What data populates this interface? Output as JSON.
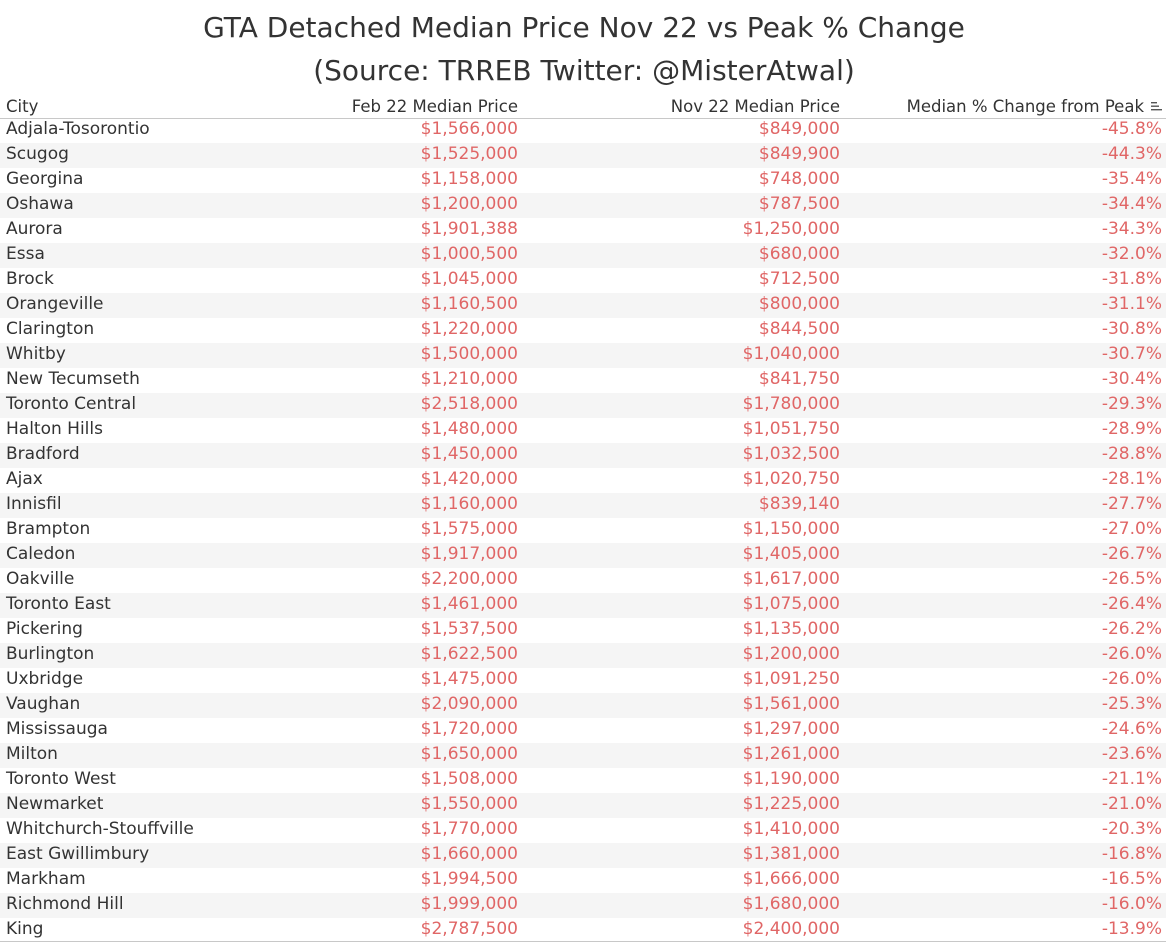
{
  "chart_data": {
    "type": "table",
    "title": "GTA Detached Median Price Nov 22 vs Peak % Change",
    "subtitle": "(Source: TRREB Twitter: @MisterAtwal)",
    "columns": [
      "City",
      "Feb 22 Median Price",
      "Nov 22 Median Price",
      "Median % Change from Peak"
    ],
    "rows": [
      [
        "Adjala-Tosorontio",
        "$1,566,000",
        "$849,000",
        "-45.8%"
      ],
      [
        "Scugog",
        "$1,525,000",
        "$849,900",
        "-44.3%"
      ],
      [
        "Georgina",
        "$1,158,000",
        "$748,000",
        "-35.4%"
      ],
      [
        "Oshawa",
        "$1,200,000",
        "$787,500",
        "-34.4%"
      ],
      [
        "Aurora",
        "$1,901,388",
        "$1,250,000",
        "-34.3%"
      ],
      [
        "Essa",
        "$1,000,500",
        "$680,000",
        "-32.0%"
      ],
      [
        "Brock",
        "$1,045,000",
        "$712,500",
        "-31.8%"
      ],
      [
        "Orangeville",
        "$1,160,500",
        "$800,000",
        "-31.1%"
      ],
      [
        "Clarington",
        "$1,220,000",
        "$844,500",
        "-30.8%"
      ],
      [
        "Whitby",
        "$1,500,000",
        "$1,040,000",
        "-30.7%"
      ],
      [
        "New Tecumseth",
        "$1,210,000",
        "$841,750",
        "-30.4%"
      ],
      [
        "Toronto Central",
        "$2,518,000",
        "$1,780,000",
        "-29.3%"
      ],
      [
        "Halton Hills",
        "$1,480,000",
        "$1,051,750",
        "-28.9%"
      ],
      [
        "Bradford",
        "$1,450,000",
        "$1,032,500",
        "-28.8%"
      ],
      [
        "Ajax",
        "$1,420,000",
        "$1,020,750",
        "-28.1%"
      ],
      [
        "Innisfil",
        "$1,160,000",
        "$839,140",
        "-27.7%"
      ],
      [
        "Brampton",
        "$1,575,000",
        "$1,150,000",
        "-27.0%"
      ],
      [
        "Caledon",
        "$1,917,000",
        "$1,405,000",
        "-26.7%"
      ],
      [
        "Oakville",
        "$2,200,000",
        "$1,617,000",
        "-26.5%"
      ],
      [
        "Toronto East",
        "$1,461,000",
        "$1,075,000",
        "-26.4%"
      ],
      [
        "Pickering",
        "$1,537,500",
        "$1,135,000",
        "-26.2%"
      ],
      [
        "Burlington",
        "$1,622,500",
        "$1,200,000",
        "-26.0%"
      ],
      [
        "Uxbridge",
        "$1,475,000",
        "$1,091,250",
        "-26.0%"
      ],
      [
        "Vaughan",
        "$2,090,000",
        "$1,561,000",
        "-25.3%"
      ],
      [
        "Mississauga",
        "$1,720,000",
        "$1,297,000",
        "-24.6%"
      ],
      [
        "Milton",
        "$1,650,000",
        "$1,261,000",
        "-23.6%"
      ],
      [
        "Toronto West",
        "$1,508,000",
        "$1,190,000",
        "-21.1%"
      ],
      [
        "Newmarket",
        "$1,550,000",
        "$1,225,000",
        "-21.0%"
      ],
      [
        "Whitchurch-Stouffville",
        "$1,770,000",
        "$1,410,000",
        "-20.3%"
      ],
      [
        "East Gwillimbury",
        "$1,660,000",
        "$1,381,000",
        "-16.8%"
      ],
      [
        "Markham",
        "$1,994,500",
        "$1,666,000",
        "-16.5%"
      ],
      [
        "Richmond Hill",
        "$1,999,000",
        "$1,680,000",
        "-16.0%"
      ],
      [
        "King",
        "$2,787,500",
        "$2,400,000",
        "-13.9%"
      ]
    ],
    "sorted_by": "Median % Change from Peak",
    "colors": {
      "text": "#333333",
      "value_text": "#e06666",
      "band": "#f5f5f5",
      "rule": "#c8c8c8"
    }
  },
  "icons": {
    "sort": "sort-descending-icon"
  }
}
